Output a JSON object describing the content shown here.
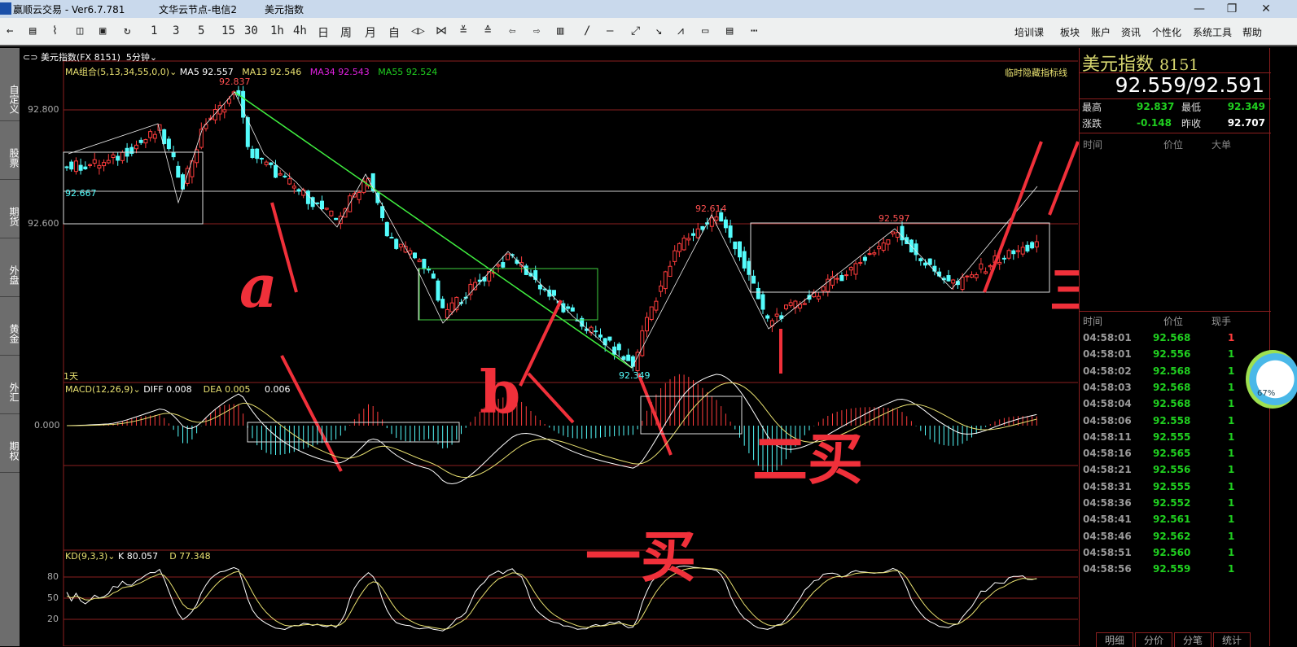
{
  "window": {
    "app_title": "赢顺云交易  -  Ver6.7.781",
    "server": "文华云节点-电信2",
    "symbol_title": "美元指数",
    "minimize": "—",
    "restore": "❐",
    "close": "✕"
  },
  "toolbar": {
    "tools": [
      "←",
      "▤",
      "⌇",
      "◫",
      "▣",
      "↻",
      "1",
      "3",
      "5",
      "15",
      "30",
      "1h",
      "4h",
      "日",
      "周",
      "月",
      "自",
      "◁▷",
      "⋈",
      "≚",
      "≙",
      "⇦",
      "⇨",
      "▥",
      "/",
      "—",
      "⤢",
      "↘",
      "⩘",
      "▭",
      "▤",
      "⋯"
    ],
    "menus": [
      "培训课",
      "板块",
      "账户",
      "资讯",
      "个性化",
      "系统工具",
      "帮助"
    ]
  },
  "sidebar": {
    "tabs": [
      "自定义",
      "股票",
      "期货",
      "外盘",
      "黄金",
      "外汇",
      "期权"
    ]
  },
  "chart": {
    "header": {
      "symbol": "美元指数(FX 8151)",
      "period": "5分钟"
    },
    "ma": {
      "label": "MA组合(5,13,34,55,0,0)",
      "ma5": "MA5 92.557",
      "ma13": "MA13 92.546",
      "ma34": "MA34 92.543",
      "ma55": "MA55 92.524"
    },
    "hide_lines": "临时隐藏指标线",
    "price_labels": {
      "p1": "92.800",
      "p2": "92.600"
    },
    "marks": {
      "high": "92.837",
      "left": "92.667",
      "low": "92.349",
      "peak1": "92.614",
      "peak2": "92.597"
    },
    "day_label": "1天",
    "macd": {
      "label": "MACD(12,26,9)",
      "diff": "DIFF 0.008",
      "dea": "DEA 0.005",
      "macd": "0.006",
      "zero": "0.000"
    },
    "kd": {
      "label": "KD(9,3,3)",
      "k": "K 80.057",
      "d": "D 77.348",
      "levels": [
        "80",
        "50",
        "20"
      ]
    },
    "annotations": {
      "a": "a",
      "b": "b",
      "buy1": "一买",
      "buy2": "二买",
      "buy3": "三买"
    },
    "colors": {
      "up": "#ff3c3c",
      "down": "#54fcfc",
      "ma5": "#ffffff",
      "ma13": "#e8e070",
      "ma34": "#e020e0",
      "ma55": "#20d020",
      "grid": "#8b1f1f",
      "annotation": "#f0303a"
    }
  },
  "chart_data": {
    "type": "candlestick",
    "ylim": [
      92.3,
      92.9
    ],
    "close_path": [
      [
        0,
        92.7
      ],
      [
        9,
        92.707
      ],
      [
        20,
        92.764
      ],
      [
        25,
        92.671
      ],
      [
        30,
        92.779
      ],
      [
        37,
        92.833
      ],
      [
        39,
        92.729
      ],
      [
        49,
        92.664
      ],
      [
        58,
        92.607
      ],
      [
        65,
        92.686
      ],
      [
        69,
        92.579
      ],
      [
        78,
        92.521
      ],
      [
        81,
        92.443
      ],
      [
        92,
        92.521
      ],
      [
        96,
        92.543
      ],
      [
        107,
        92.45
      ],
      [
        116,
        92.393
      ],
      [
        122,
        92.35
      ],
      [
        125,
        92.436
      ],
      [
        132,
        92.564
      ],
      [
        140,
        92.614
      ],
      [
        144,
        92.564
      ],
      [
        151,
        92.429
      ],
      [
        160,
        92.471
      ],
      [
        169,
        92.521
      ],
      [
        179,
        92.586
      ],
      [
        186,
        92.521
      ],
      [
        192,
        92.493
      ],
      [
        200,
        92.536
      ],
      [
        209,
        92.564
      ]
    ]
  },
  "quote": {
    "name": "美元指数",
    "code": "8151",
    "bid_ask": "92.559/92.591",
    "high_label": "最高",
    "high": "92.837",
    "low_label": "最低",
    "low": "92.349",
    "change_label": "涨跌",
    "change": "-0.148",
    "prev_label": "昨收",
    "prev": "92.707",
    "big_headers": [
      "时间",
      "价位",
      "大单"
    ],
    "tick_headers": [
      "时间",
      "价位",
      "现手"
    ],
    "ticks": [
      [
        "04:58:01",
        "92.568",
        "1"
      ],
      [
        "04:58:01",
        "92.556",
        "1"
      ],
      [
        "04:58:02",
        "92.568",
        "1"
      ],
      [
        "04:58:03",
        "92.568",
        "1"
      ],
      [
        "04:58:04",
        "92.568",
        "1"
      ],
      [
        "04:58:06",
        "92.558",
        "1"
      ],
      [
        "04:58:11",
        "92.555",
        "1"
      ],
      [
        "04:58:16",
        "92.565",
        "1"
      ],
      [
        "04:58:21",
        "92.556",
        "1"
      ],
      [
        "04:58:31",
        "92.555",
        "1"
      ],
      [
        "04:58:36",
        "92.552",
        "1"
      ],
      [
        "04:58:41",
        "92.561",
        "1"
      ],
      [
        "04:58:46",
        "92.562",
        "1"
      ],
      [
        "04:58:51",
        "92.560",
        "1"
      ],
      [
        "04:58:56",
        "92.559",
        "1"
      ]
    ],
    "bottom_tabs": [
      "明细",
      "分价",
      "分笔",
      "统计"
    ]
  },
  "gauge": {
    "percent": "67%",
    "value": 67
  }
}
